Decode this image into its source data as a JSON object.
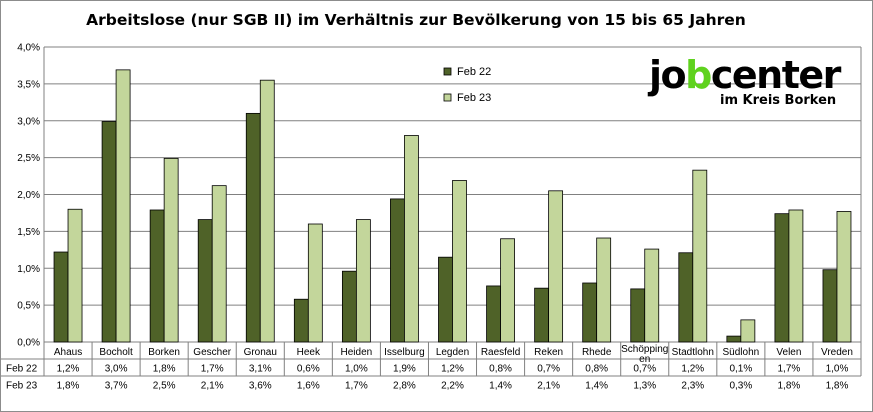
{
  "colors": {
    "series1": "#4f6228",
    "series2": "#c3d69b",
    "grid": "#808080",
    "logo_accent": "#5fd21e"
  },
  "logo": {
    "word_start": "jo",
    "word_accent": "b",
    "word_end": "center",
    "subline": "im Kreis Borken"
  },
  "chart_data": {
    "type": "bar",
    "title": "Arbeitslose (nur SGB II) im Verhältnis zur Bevölkerung von 15 bis 65 Jahren",
    "ylim": [
      0,
      4.0
    ],
    "yticks": [
      "0,0%",
      "0,5%",
      "1,0%",
      "1,5%",
      "2,0%",
      "2,5%",
      "3,0%",
      "3,5%",
      "4,0%"
    ],
    "ytick_values": [
      0,
      0.5,
      1.0,
      1.5,
      2.0,
      2.5,
      3.0,
      3.5,
      4.0
    ],
    "grid": true,
    "legend_position": "top-right",
    "categories": [
      [
        "Ahaus"
      ],
      [
        "Bocholt"
      ],
      [
        "Borken"
      ],
      [
        "Gescher"
      ],
      [
        "Gronau"
      ],
      [
        "Heek"
      ],
      [
        "Heiden"
      ],
      [
        "Isselburg"
      ],
      [
        "Legden"
      ],
      [
        "Raesfeld"
      ],
      [
        "Reken"
      ],
      [
        "Rhede"
      ],
      [
        "Schöpping",
        "en"
      ],
      [
        "Stadtlohn"
      ],
      [
        "Südlohn"
      ],
      [
        "Velen"
      ],
      [
        "Vreden"
      ]
    ],
    "series": [
      {
        "name": "Feb 22",
        "values": [
          1.22,
          2.99,
          1.79,
          1.66,
          3.1,
          0.58,
          0.96,
          1.94,
          1.15,
          0.76,
          0.73,
          0.8,
          0.72,
          1.21,
          0.08,
          1.74,
          0.98
        ],
        "labels": [
          "1,2%",
          "3,0%",
          "1,8%",
          "1,7%",
          "3,1%",
          "0,6%",
          "1,0%",
          "1,9%",
          "1,2%",
          "0,8%",
          "0,7%",
          "0,8%",
          "0,7%",
          "1,2%",
          "0,1%",
          "1,7%",
          "1,0%"
        ]
      },
      {
        "name": "Feb 23",
        "values": [
          1.8,
          3.69,
          2.49,
          2.12,
          3.55,
          1.6,
          1.66,
          2.8,
          2.19,
          1.4,
          2.05,
          1.41,
          1.26,
          2.33,
          0.3,
          1.79,
          1.77
        ],
        "labels": [
          "1,8%",
          "3,7%",
          "2,5%",
          "2,1%",
          "3,6%",
          "1,6%",
          "1,7%",
          "2,8%",
          "2,2%",
          "1,4%",
          "2,1%",
          "1,4%",
          "1,3%",
          "2,3%",
          "0,3%",
          "1,8%",
          "1,8%"
        ]
      }
    ]
  }
}
